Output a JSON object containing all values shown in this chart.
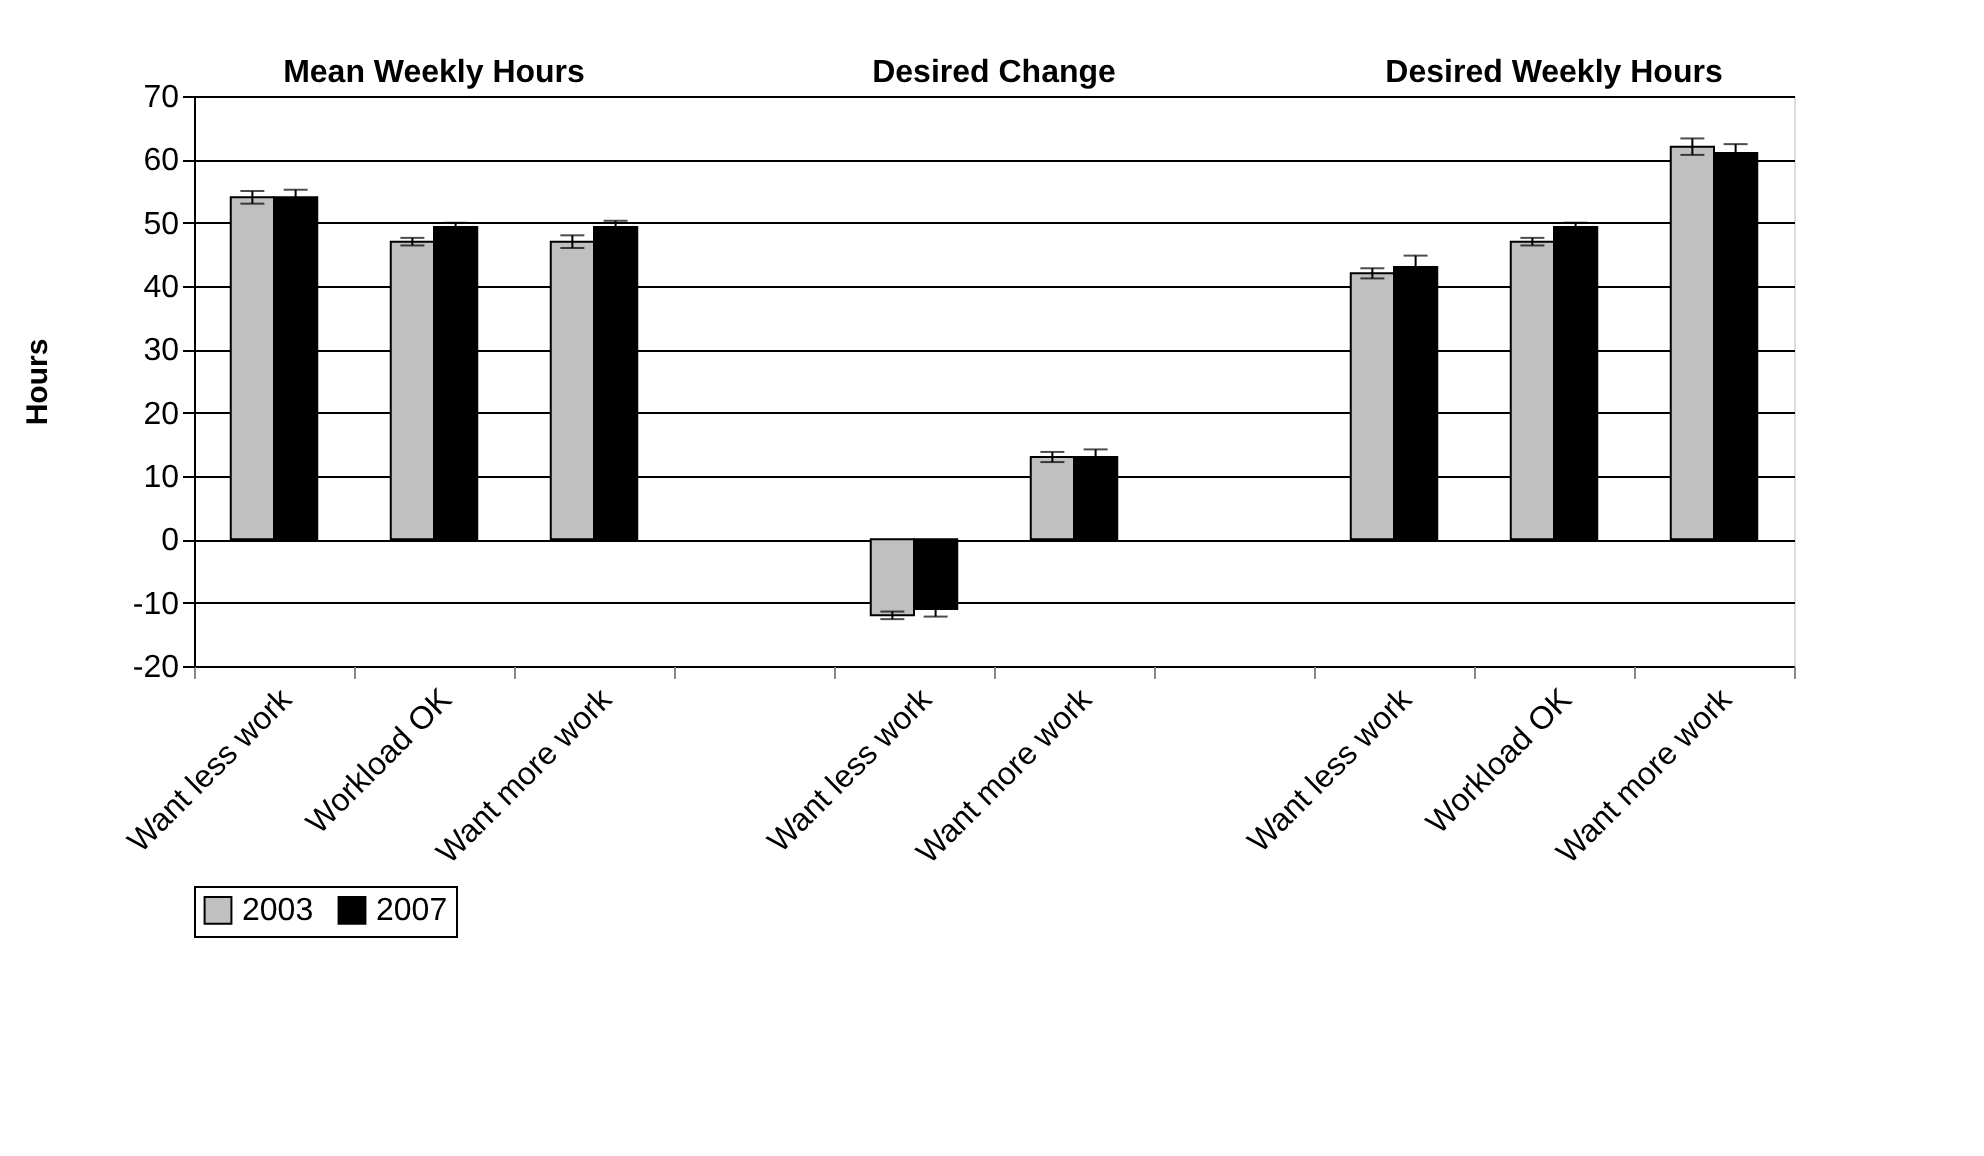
{
  "chart_data": {
    "type": "bar",
    "categories": [
      "Want less work",
      "Workload OK",
      "Want more work",
      null,
      "Want less work",
      "Want more work",
      null,
      "Want less work",
      "Workload OK",
      "Want more work"
    ],
    "series": [
      {
        "name": "2003",
        "color": "#c0c0c0",
        "values": [
          54,
          47,
          47,
          null,
          -12,
          13,
          null,
          42,
          47,
          62
        ],
        "errors": [
          1,
          0.6,
          1,
          null,
          0.6,
          0.8,
          null,
          0.8,
          0.6,
          1.3
        ]
      },
      {
        "name": "2007",
        "color": "#000000",
        "values": [
          54,
          49.3,
          49.3,
          null,
          -11,
          13,
          null,
          43,
          49.3,
          61
        ],
        "errors": [
          1.2,
          0.7,
          1,
          null,
          1.2,
          1.2,
          null,
          1.8,
          0.7,
          1.4
        ]
      }
    ],
    "ylabel": "Hours",
    "ylim": [
      -20,
      70
    ],
    "yticks": [
      -20,
      -10,
      0,
      10,
      20,
      30,
      40,
      50,
      60,
      70
    ],
    "annotations": [
      "Mean Weekly Hours",
      "Desired Change",
      "Desired Weekly Hours"
    ],
    "grid": "y",
    "legend": "bottom"
  }
}
